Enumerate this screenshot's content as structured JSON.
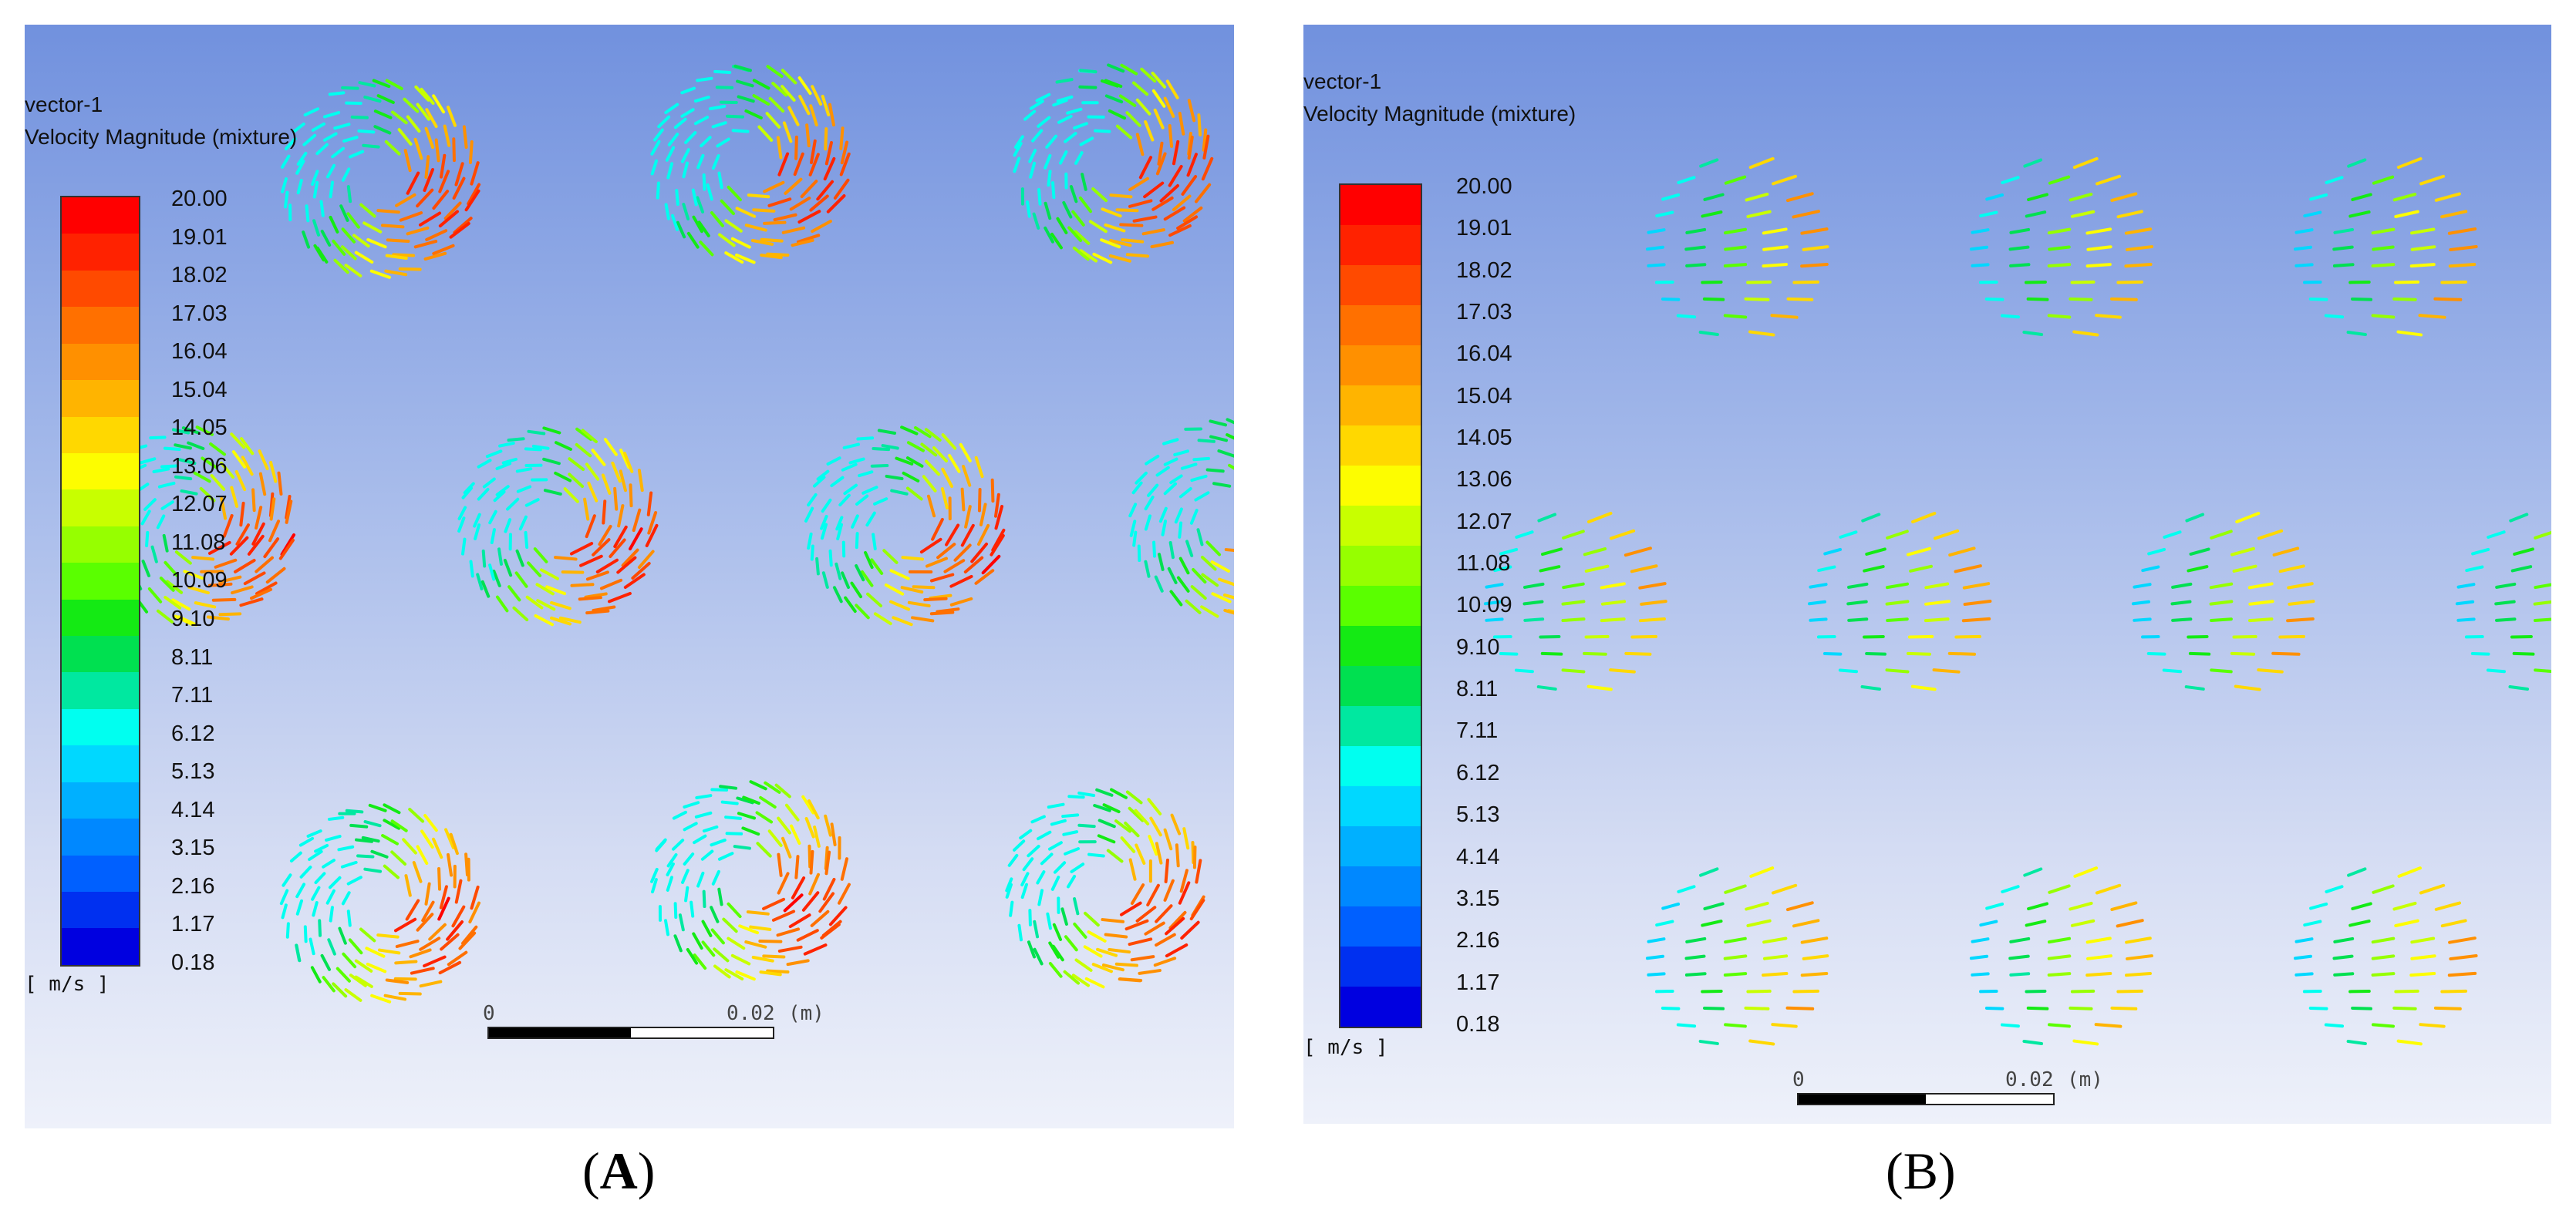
{
  "legend_levels": [
    "20.00",
    "19.01",
    "18.02",
    "17.03",
    "16.04",
    "15.04",
    "14.05",
    "13.06",
    "12.07",
    "11.08",
    "10.09",
    "9.10",
    "8.11",
    "7.11",
    "6.12",
    "5.13",
    "4.14",
    "3.15",
    "2.16",
    "1.17",
    "0.18"
  ],
  "colormap": [
    "#ff0000",
    "#ff2200",
    "#ff4a00",
    "#ff7000",
    "#ff9000",
    "#ffb400",
    "#ffd800",
    "#fdfd00",
    "#c8ff00",
    "#96ff00",
    "#5aff00",
    "#14ea14",
    "#00e050",
    "#00e8a0",
    "#00fff0",
    "#00d8ff",
    "#00b0ff",
    "#0088ff",
    "#0060ff",
    "#0030f0",
    "#0000e0"
  ],
  "panels": [
    {
      "id": "A",
      "title_line1": "vector-1",
      "title_line2": "Velocity Magnitude (mixture)",
      "unit": "[ m/s ]",
      "scale_zero": "0",
      "scale_end": "0.02",
      "scale_unit": "(m)",
      "caption_open": "(",
      "caption_letter": "A",
      "caption_close": ")",
      "pattern": "swirl"
    },
    {
      "id": "B",
      "title_line1": "vector-1",
      "title_line2": "Velocity Magnitude (mixture)",
      "unit": "[ m/s ]",
      "scale_zero": "0",
      "scale_end": "0.02",
      "scale_unit": "(m)",
      "caption_open": "(",
      "caption_letter": "B",
      "caption_close": ")",
      "pattern": "stream"
    }
  ]
}
